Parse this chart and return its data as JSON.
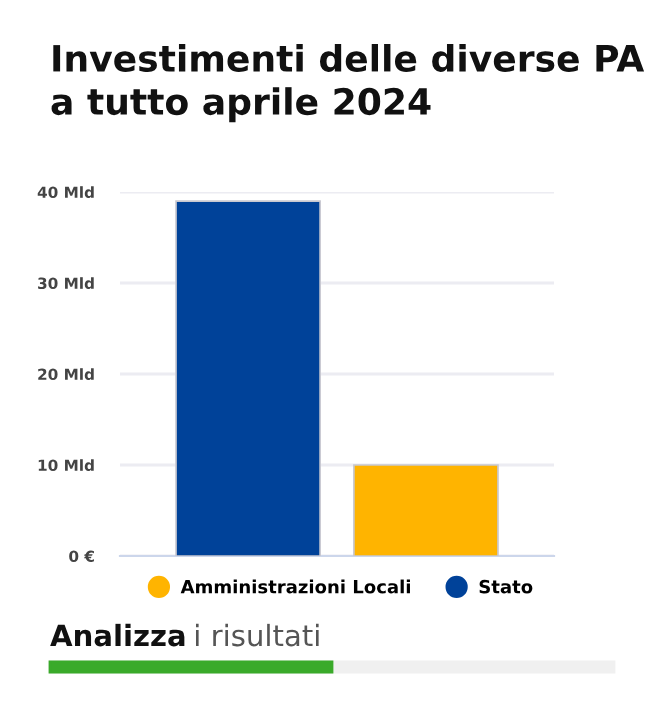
{
  "chart_data": {
    "type": "bar",
    "title": "Investimenti delle diverse PA\na tutto aprile 2024",
    "categories": [
      null,
      null
    ],
    "series": [
      {
        "name": "Amministrazioni Locali",
        "color": "#ffb400",
        "values": [
          null,
          10
        ]
      },
      {
        "name": "Stato",
        "color": "#004299",
        "values": [
          39,
          null
        ]
      }
    ],
    "ylim": [
      0,
      40
    ],
    "yticks": [
      {
        "value": 0,
        "label": "0 €"
      },
      {
        "value": 10,
        "label": "10 Mld"
      },
      {
        "value": 20,
        "label": "20 Mld"
      },
      {
        "value": 30,
        "label": "30 Mld"
      },
      {
        "value": 40,
        "label": "40 Mld"
      }
    ],
    "grid": "y",
    "legend": "bottom",
    "annotations": [
      "Analizza i risultati"
    ]
  }
}
